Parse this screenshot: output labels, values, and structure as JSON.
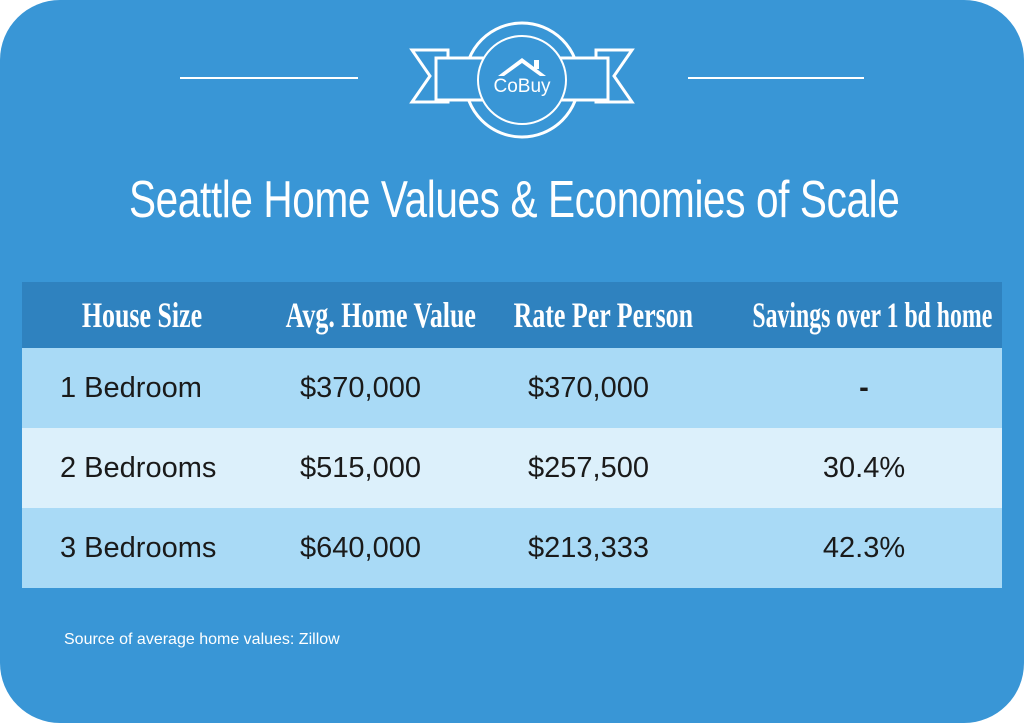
{
  "brand": {
    "name": "CoBuy",
    "logo_icon": "house-roof-icon"
  },
  "title": "Seattle Home Values & Economies of Scale",
  "table": {
    "headers": [
      "House Size",
      "Avg. Home Value",
      "Rate Per Person",
      "Savings over 1 bd home"
    ],
    "rows": [
      [
        "1 Bedroom",
        "$370,000",
        "$370,000",
        "-"
      ],
      [
        "2 Bedrooms",
        "$515,000",
        "$257,500",
        "30.4%"
      ],
      [
        "3 Bedrooms",
        "$640,000",
        "$213,333",
        "42.3%"
      ]
    ]
  },
  "source": "Source of average home values: Zillow",
  "colors": {
    "background": "#3996d6",
    "header": "#2f82bf",
    "row_dark": "#a9daf6",
    "row_light": "#dcf0fb"
  }
}
